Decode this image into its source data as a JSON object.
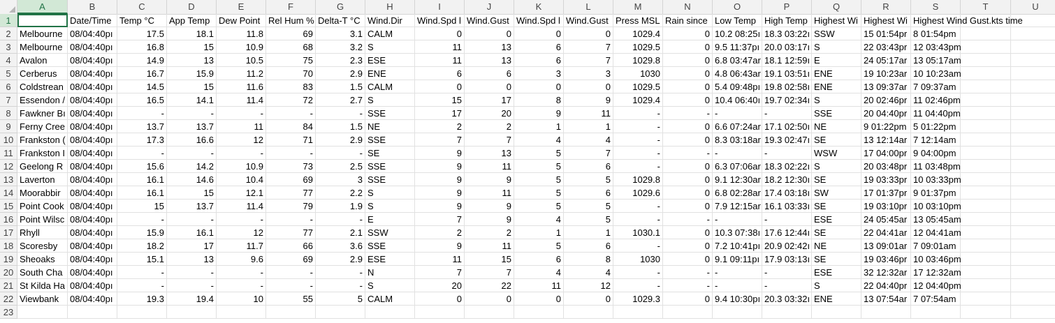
{
  "columns": [
    "A",
    "B",
    "C",
    "D",
    "E",
    "F",
    "G",
    "H",
    "I",
    "J",
    "K",
    "L",
    "M",
    "N",
    "O",
    "P",
    "Q",
    "R",
    "S",
    "T",
    "U"
  ],
  "header": [
    "",
    "Date/Time",
    "Temp °C",
    "App Temp",
    "Dew Point",
    "Rel Hum %",
    "Delta-T °C",
    "Wind.Dir",
    "Wind.Spd l",
    "Wind.Gust",
    "Wind.Spd l",
    "Wind.Gust",
    "Press MSL",
    "Rain since",
    "Low Temp",
    "High Temp",
    "Highest Wi",
    "Highest Wi",
    "Highest Wind Gust.kts time",
    "",
    ""
  ],
  "rows": [
    [
      "Melbourne",
      "08/04:40pı",
      "17.5",
      "18.1",
      "11.8",
      "69",
      "3.1",
      "CALM",
      "0",
      "0",
      "0",
      "0",
      "1029.4",
      "0",
      "10.2 08:25ı",
      "18.3 03:22ı",
      "SSW",
      "15 01:54pr",
      "8 01:54pm",
      "",
      ""
    ],
    [
      "Melbourne",
      "08/04:40pı",
      "16.8",
      "15",
      "10.9",
      "68",
      "3.2",
      "S",
      "11",
      "13",
      "6",
      "7",
      "1029.5",
      "0",
      "9.5 11:37pı",
      "20.0 03:17ı",
      "S",
      "22 03:43pr",
      "12 03:43pm",
      "",
      ""
    ],
    [
      "Avalon",
      "08/04:40pı",
      "14.9",
      "13",
      "10.5",
      "75",
      "2.3",
      "ESE",
      "11",
      "13",
      "6",
      "7",
      "1029.8",
      "0",
      "6.8 03:47ar",
      "18.1 12:59ı",
      "E",
      "24 05:17ar",
      "13 05:17am",
      "",
      ""
    ],
    [
      "Cerberus",
      "08/04:40pı",
      "16.7",
      "15.9",
      "11.2",
      "70",
      "2.9",
      "ENE",
      "6",
      "6",
      "3",
      "3",
      "1030",
      "0",
      "4.8 06:43ar",
      "19.1 03:51ı",
      "ENE",
      "19 10:23ar",
      "10 10:23am",
      "",
      ""
    ],
    [
      "Coldstrean",
      "08/04:40pı",
      "14.5",
      "15",
      "11.6",
      "83",
      "1.5",
      "CALM",
      "0",
      "0",
      "0",
      "0",
      "1029.5",
      "0",
      "5.4 09:48pı",
      "19.8 02:58ı",
      "ENE",
      "13 09:37ar",
      "7 09:37am",
      "",
      ""
    ],
    [
      "Essendon /",
      "08/04:40pı",
      "16.5",
      "14.1",
      "11.4",
      "72",
      "2.7",
      "S",
      "15",
      "17",
      "8",
      "9",
      "1029.4",
      "0",
      "10.4 06:40ı",
      "19.7 02:34ı",
      "S",
      "20 02:46pr",
      "11 02:46pm",
      "",
      ""
    ],
    [
      "Fawkner Bı",
      "08/04:40pı",
      "-",
      "-",
      "-",
      "-",
      "-",
      "SSE",
      "17",
      "20",
      "9",
      "11",
      "-",
      "-",
      "-",
      "-",
      "SSE",
      "20 04:40pr",
      "11 04:40pm",
      "",
      ""
    ],
    [
      "Ferny Cree",
      "08/04:40pı",
      "13.7",
      "13.7",
      "11",
      "84",
      "1.5",
      "NE",
      "2",
      "2",
      "1",
      "1",
      "-",
      "0",
      "6.6 07:24ar",
      "17.1 02:50ı",
      "NE",
      "9 01:22pm",
      "5 01:22pm",
      "",
      ""
    ],
    [
      "Frankston (",
      "08/04:40pı",
      "17.3",
      "16.6",
      "12",
      "71",
      "2.9",
      "SSE",
      "7",
      "7",
      "4",
      "4",
      "-",
      "0",
      "8.3 03:18ar",
      "19.3 02:47ı",
      "SE",
      "13 12:14ar",
      "7 12:14am",
      "",
      ""
    ],
    [
      "Frankston I",
      "08/04:40pı",
      "-",
      "-",
      "-",
      "-",
      "-",
      "SE",
      "9",
      "13",
      "5",
      "7",
      "-",
      "-",
      "-",
      "-",
      "WSW",
      "17 04:00pr",
      "9 04:00pm",
      "",
      ""
    ],
    [
      "Geelong R",
      "08/04:40pı",
      "15.6",
      "14.2",
      "10.9",
      "73",
      "2.5",
      "SSE",
      "9",
      "11",
      "5",
      "6",
      "-",
      "0",
      "6.3 07:06ar",
      "18.3 02:22ı",
      "S",
      "20 03:48pr",
      "11 03:48pm",
      "",
      ""
    ],
    [
      "Laverton",
      "08/04:40pı",
      "16.1",
      "14.6",
      "10.4",
      "69",
      "3",
      "SSE",
      "9",
      "9",
      "5",
      "5",
      "1029.8",
      "0",
      "9.1 12:30ar",
      "18.2 12:30ı",
      "SE",
      "19 03:33pr",
      "10 03:33pm",
      "",
      ""
    ],
    [
      "Moorabbir",
      "08/04:40pı",
      "16.1",
      "15",
      "12.1",
      "77",
      "2.2",
      "S",
      "9",
      "11",
      "5",
      "6",
      "1029.6",
      "0",
      "6.8 02:28ar",
      "17.4 03:18ı",
      "SW",
      "17 01:37pr",
      "9 01:37pm",
      "",
      ""
    ],
    [
      "Point Cook",
      "08/04:40pı",
      "15",
      "13.7",
      "11.4",
      "79",
      "1.9",
      "S",
      "9",
      "9",
      "5",
      "5",
      "-",
      "0",
      "7.9 12:15ar",
      "16.1 03:33ı",
      "SE",
      "19 03:10pr",
      "10 03:10pm",
      "",
      ""
    ],
    [
      "Point Wilsc",
      "08/04:40pı",
      "-",
      "-",
      "-",
      "-",
      "-",
      "E",
      "7",
      "9",
      "4",
      "5",
      "-",
      "-",
      "-",
      "-",
      "ESE",
      "24 05:45ar",
      "13 05:45am",
      "",
      ""
    ],
    [
      "Rhyll",
      "08/04:40pı",
      "15.9",
      "16.1",
      "12",
      "77",
      "2.1",
      "SSW",
      "2",
      "2",
      "1",
      "1",
      "1030.1",
      "0",
      "10.3 07:38ı",
      "17.6 12:44ı",
      "SE",
      "22 04:41ar",
      "12 04:41am",
      "",
      ""
    ],
    [
      "Scoresby",
      "08/04:40pı",
      "18.2",
      "17",
      "11.7",
      "66",
      "3.6",
      "SSE",
      "9",
      "11",
      "5",
      "6",
      "-",
      "0",
      "7.2 10:41pı",
      "20.9 02:42ı",
      "NE",
      "13 09:01ar",
      "7 09:01am",
      "",
      ""
    ],
    [
      "Sheoaks",
      "08/04:40pı",
      "15.1",
      "13",
      "9.6",
      "69",
      "2.9",
      "ESE",
      "11",
      "15",
      "6",
      "8",
      "1030",
      "0",
      "9.1 09:11pı",
      "17.9 03:13ı",
      "SE",
      "19 03:46pr",
      "10 03:46pm",
      "",
      ""
    ],
    [
      "South Cha",
      "08/04:40pı",
      "-",
      "-",
      "-",
      "-",
      "-",
      "N",
      "7",
      "7",
      "4",
      "4",
      "-",
      "-",
      "-",
      "-",
      "ESE",
      "32 12:32ar",
      "17 12:32am",
      "",
      ""
    ],
    [
      "St Kilda Ha",
      "08/04:40pı",
      "-",
      "-",
      "-",
      "-",
      "-",
      "S",
      "20",
      "22",
      "11",
      "12",
      "-",
      "-",
      "-",
      "-",
      "S",
      "22 04:40pr",
      "12 04:40pm",
      "",
      ""
    ],
    [
      "Viewbank",
      "08/04:40pı",
      "19.3",
      "19.4",
      "10",
      "55",
      "5",
      "CALM",
      "0",
      "0",
      "0",
      "0",
      "1029.3",
      "0",
      "9.4 10:30pı",
      "20.3 03:32ı",
      "ENE",
      "13 07:54ar",
      "7 07:54am",
      "",
      ""
    ],
    [
      "",
      "",
      "",
      "",
      "",
      "",
      "",
      "",
      "",
      "",
      "",
      "",
      "",
      "",
      "",
      "",
      "",
      "",
      "",
      "",
      ""
    ]
  ]
}
